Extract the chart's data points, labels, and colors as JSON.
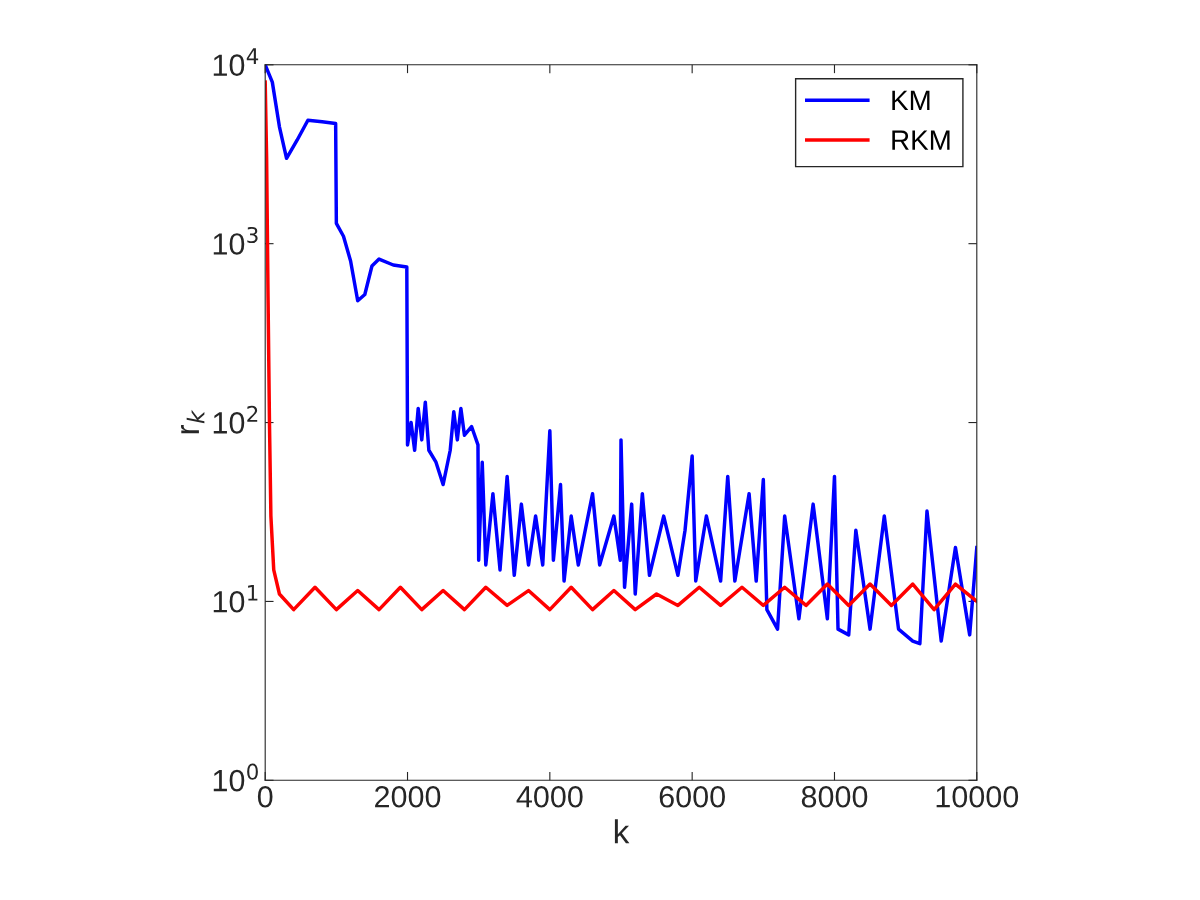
{
  "chart_data": {
    "type": "line",
    "xlabel": "k",
    "ylabel": "r$_{k}$",
    "log": "y",
    "grid": false,
    "legend": "top right",
    "xlim": [
      0,
      10000
    ],
    "xticks": [
      0,
      2000,
      4000,
      6000,
      8000,
      10000
    ],
    "ylim": [
      1,
      10000
    ],
    "yticks": [
      {
        "value": 1,
        "label": "10$^{0}$"
      },
      {
        "value": 10,
        "label": "10$^{1}$"
      },
      {
        "value": 100,
        "label": "10$^{2}$"
      },
      {
        "value": 1000,
        "label": "10$^{3}$"
      },
      {
        "value": 10000,
        "label": "10$^{4}$"
      }
    ],
    "series": [
      {
        "name": "KM",
        "color": "#0000ff",
        "x": [
          0,
          100,
          200,
          300,
          450,
          600,
          800,
          990,
          1000,
          1100,
          1200,
          1300,
          1400,
          1500,
          1600,
          1800,
          1990,
          2000,
          2050,
          2100,
          2150,
          2200,
          2250,
          2300,
          2400,
          2500,
          2600,
          2650,
          2700,
          2750,
          2800,
          2900,
          2990,
          3000,
          3050,
          3100,
          3200,
          3300,
          3400,
          3500,
          3600,
          3700,
          3800,
          3900,
          4000,
          4050,
          4150,
          4200,
          4300,
          4400,
          4600,
          4700,
          4900,
          4990,
          5000,
          5050,
          5150,
          5200,
          5300,
          5400,
          5600,
          5800,
          5900,
          6000,
          6050,
          6200,
          6400,
          6500,
          6600,
          6800,
          6900,
          7000,
          7050,
          7200,
          7300,
          7500,
          7700,
          7900,
          8000,
          8050,
          8200,
          8300,
          8500,
          8700,
          8900,
          9100,
          9200,
          9300,
          9500,
          9700,
          9900,
          10000
        ],
        "values": [
          10000,
          8000,
          4500,
          3000,
          3800,
          4900,
          4800,
          4700,
          1300,
          1100,
          800,
          480,
          520,
          750,
          820,
          760,
          740,
          75,
          100,
          70,
          120,
          80,
          130,
          70,
          60,
          45,
          70,
          115,
          80,
          120,
          85,
          95,
          75,
          17,
          60,
          16,
          40,
          15,
          50,
          14,
          35,
          16,
          30,
          16,
          90,
          17,
          45,
          13,
          30,
          16,
          40,
          16,
          30,
          17,
          80,
          12,
          35,
          11,
          40,
          14,
          30,
          14,
          25,
          65,
          13,
          30,
          13,
          50,
          13,
          40,
          13,
          48,
          9,
          7,
          30,
          8,
          35,
          8,
          50,
          7,
          6.5,
          25,
          7,
          30,
          7,
          6,
          5.8,
          32,
          6,
          20,
          6.5,
          20
        ]
      },
      {
        "name": "RKM",
        "color": "#ff0000",
        "x": [
          0,
          20,
          40,
          60,
          80,
          120,
          200,
          400,
          700,
          1000,
          1300,
          1600,
          1900,
          2200,
          2500,
          2800,
          3100,
          3400,
          3700,
          4000,
          4300,
          4600,
          4900,
          5200,
          5500,
          5800,
          6100,
          6400,
          6700,
          7000,
          7300,
          7600,
          7900,
          8200,
          8500,
          8800,
          9100,
          9400,
          9700,
          10000
        ],
        "values": [
          8000,
          3000,
          500,
          100,
          30,
          15,
          11,
          9,
          12,
          9,
          11.5,
          9,
          12,
          9,
          11.5,
          9,
          12,
          9.5,
          11.5,
          9,
          12,
          9,
          11.5,
          9,
          11,
          9.5,
          12,
          9.5,
          12,
          9.5,
          12,
          9.5,
          12.5,
          9.5,
          12.5,
          9.5,
          12.5,
          9,
          12.5,
          10
        ]
      }
    ]
  }
}
